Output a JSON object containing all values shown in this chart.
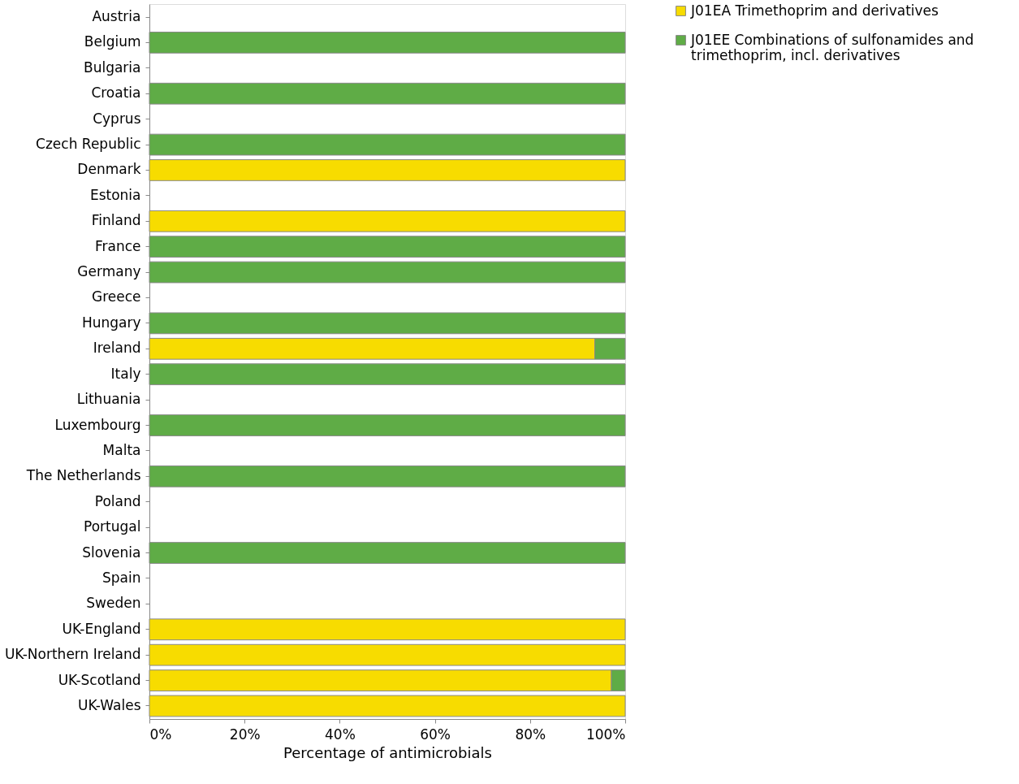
{
  "chart_data": {
    "type": "bar",
    "orientation": "horizontal",
    "stacked": true,
    "xlabel": "Percentage of antimicrobials",
    "categories": [
      "Austria",
      "Belgium",
      "Bulgaria",
      "Croatia",
      "Cyprus",
      "Czech Republic",
      "Denmark",
      "Estonia",
      "Finland",
      "France",
      "Germany",
      "Greece",
      "Hungary",
      "Ireland",
      "Italy",
      "Lithuania",
      "Luxembourg",
      "Malta",
      "The Netherlands",
      "Poland",
      "Portugal",
      "Slovenia",
      "Spain",
      "Sweden",
      "UK-England",
      "UK-Northern Ireland",
      "UK-Scotland",
      "UK-Wales"
    ],
    "series": [
      {
        "name": "J01EA Trimethoprim and derivatives",
        "color": "#f7dc00",
        "values": [
          null,
          null,
          null,
          null,
          null,
          null,
          100,
          null,
          100,
          null,
          null,
          null,
          null,
          93.6,
          null,
          null,
          null,
          null,
          null,
          null,
          null,
          null,
          null,
          null,
          100,
          100,
          97.1,
          100
        ]
      },
      {
        "name": "J01EE Combinations of sulfonamides and trimethoprim, incl. derivatives",
        "color": "#5fac46",
        "values": [
          null,
          100,
          null,
          100,
          null,
          100,
          null,
          null,
          null,
          100,
          100,
          null,
          100,
          6.4,
          100,
          null,
          100,
          null,
          100,
          null,
          null,
          100,
          null,
          null,
          null,
          null,
          2.9,
          null
        ]
      }
    ],
    "xlim": [
      0,
      100
    ],
    "xticks": [
      {
        "value": 0,
        "label": "0%"
      },
      {
        "value": 20,
        "label": "20%"
      },
      {
        "value": 40,
        "label": "40%"
      },
      {
        "value": 60,
        "label": "60%"
      },
      {
        "value": 80,
        "label": "80%"
      },
      {
        "value": 100,
        "label": "100%"
      }
    ],
    "grid": false,
    "legend": "top right"
  }
}
